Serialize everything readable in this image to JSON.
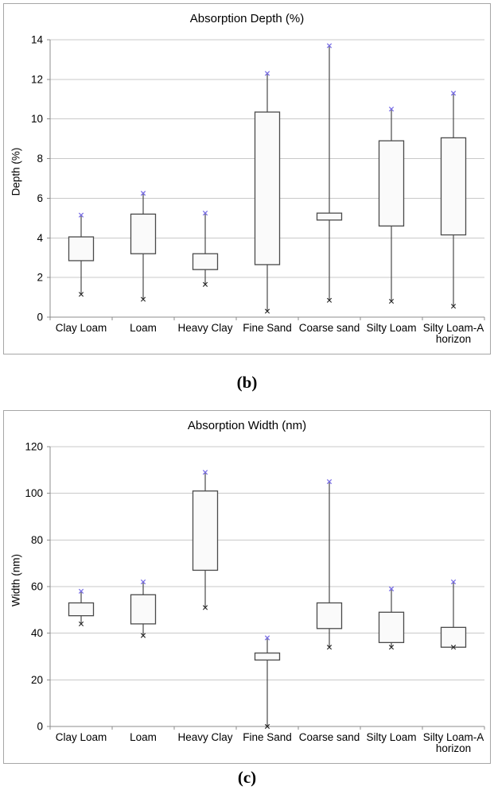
{
  "figure": {
    "captions": [
      "(b)",
      "(c)"
    ]
  },
  "style": {
    "background": "#ffffff",
    "panel_border": "#a6a6a6",
    "grid_color": "#c9c9c9",
    "axis_color": "#8c8c8c",
    "box_fill": "#fafafa",
    "box_stroke": "#4a4a4a",
    "text_color": "#000000"
  },
  "chart_data": [
    {
      "type": "boxplot",
      "title": "Absorption Depth (%)",
      "xlabel": "",
      "ylabel": "Depth (%)",
      "ylim": [
        0,
        14
      ],
      "ytick_step": 2,
      "ytick_labels": [
        "0",
        "2",
        "4",
        "6",
        "8",
        "10",
        "12",
        "14"
      ],
      "grid": true,
      "legend": "none",
      "marker_high_color": "#7b70e6",
      "marker_low_color": "#262626",
      "categories": [
        "Clay Loam",
        "Loam",
        "Heavy Clay",
        "Fine Sand",
        "Coarse sand",
        "Silty Loam",
        "Silty Loam-A\nhorizon"
      ],
      "boxes": [
        {
          "category": "Clay Loam",
          "whisker_low": 1.15,
          "q1": 2.85,
          "q3": 4.05,
          "whisker_high": 5.15
        },
        {
          "category": "Loam",
          "whisker_low": 0.9,
          "q1": 3.2,
          "q3": 5.2,
          "whisker_high": 6.25
        },
        {
          "category": "Heavy Clay",
          "whisker_low": 1.65,
          "q1": 2.4,
          "q3": 3.2,
          "whisker_high": 5.25
        },
        {
          "category": "Fine Sand",
          "whisker_low": 0.3,
          "q1": 2.65,
          "q3": 10.35,
          "whisker_high": 12.3
        },
        {
          "category": "Coarse sand",
          "whisker_low": 0.85,
          "q1": 4.9,
          "q3": 5.25,
          "whisker_high": 13.7
        },
        {
          "category": "Silty Loam",
          "whisker_low": 0.8,
          "q1": 4.6,
          "q3": 8.9,
          "whisker_high": 10.5
        },
        {
          "category": "Silty Loam-A horizon",
          "whisker_low": 0.55,
          "q1": 4.15,
          "q3": 9.05,
          "whisker_high": 11.3
        }
      ]
    },
    {
      "type": "boxplot",
      "title": "Absorption Width (nm)",
      "xlabel": "",
      "ylabel": "Width (nm)",
      "ylim": [
        0,
        120
      ],
      "ytick_step": 20,
      "ytick_labels": [
        "0",
        "20",
        "40",
        "60",
        "80",
        "100",
        "120"
      ],
      "grid": true,
      "legend": "none",
      "marker_high_color": "#7b70e6",
      "marker_low_color": "#262626",
      "categories": [
        "Clay Loam",
        "Loam",
        "Heavy Clay",
        "Fine Sand",
        "Coarse sand",
        "Silty Loam",
        "Silty Loam-A\nhorizon"
      ],
      "boxes": [
        {
          "category": "Clay Loam",
          "whisker_low": 44,
          "q1": 47.5,
          "q3": 53,
          "whisker_high": 58
        },
        {
          "category": "Loam",
          "whisker_low": 39,
          "q1": 44,
          "q3": 56.5,
          "whisker_high": 62
        },
        {
          "category": "Heavy Clay",
          "whisker_low": 51,
          "q1": 67,
          "q3": 101,
          "whisker_high": 109
        },
        {
          "category": "Fine Sand",
          "whisker_low": 0,
          "q1": 28.5,
          "q3": 31.5,
          "whisker_high": 38
        },
        {
          "category": "Coarse sand",
          "whisker_low": 34,
          "q1": 42,
          "q3": 53,
          "whisker_high": 105
        },
        {
          "category": "Silty Loam",
          "whisker_low": 34,
          "q1": 36,
          "q3": 49,
          "whisker_high": 59
        },
        {
          "category": "Silty Loam-A horizon",
          "whisker_low": 34,
          "q1": 34,
          "q3": 42.5,
          "whisker_high": 62
        }
      ]
    }
  ]
}
